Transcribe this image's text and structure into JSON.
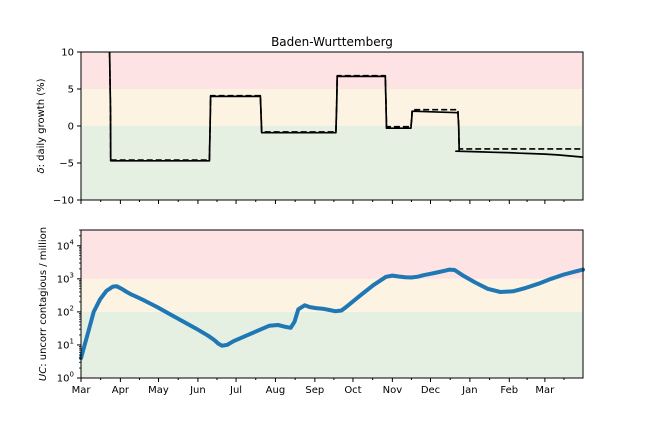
{
  "chart_data": [
    {
      "type": "line",
      "title": "Baden-Wurttemberg",
      "ylabel_italic": "δ",
      "ylabel_rest": ": daily growth (%)",
      "ylim": [
        -10,
        10
      ],
      "yticks": [
        -10,
        -5,
        0,
        5,
        10
      ],
      "xlim_days": [
        0,
        395
      ],
      "band_colors": [
        "#e5f0e2",
        "#fcf3e2",
        "#fde3e3"
      ],
      "bands": [
        [
          -10,
          0
        ],
        [
          0,
          5
        ],
        [
          5,
          10
        ]
      ],
      "series": [
        {
          "style": "solid",
          "x_days": [
            22.5,
            23.2,
            23.4,
            101,
            101.6,
            102,
            141.2,
            141.8,
            142.2,
            200.6,
            201.2,
            201.6,
            239.4,
            240,
            240.4,
            259.6,
            260.2,
            260.6,
            296.6,
            297.2,
            297.6,
            295,
            305,
            315,
            325,
            335,
            345,
            355,
            365,
            375,
            385,
            395
          ],
          "values": [
            10,
            2,
            -4.7,
            -4.7,
            0,
            4.0,
            4.0,
            1,
            -0.9,
            -0.9,
            3,
            6.7,
            6.7,
            3,
            -0.3,
            -0.3,
            1,
            2.0,
            1.8,
            0,
            -3.4,
            -3.4,
            -3.45,
            -3.5,
            -3.55,
            -3.6,
            -3.67,
            -3.73,
            -3.8,
            -3.9,
            -4.05,
            -4.2
          ]
        },
        {
          "style": "dashed",
          "x_days": [
            22.5,
            23.2,
            23.4,
            101,
            101.6,
            102,
            141.2,
            141.8,
            142.2,
            200.6,
            201.2,
            201.6,
            239.4,
            240,
            240.4,
            259.6,
            260.2,
            260.6,
            296.6,
            297.2,
            297.6,
            395
          ],
          "values": [
            10,
            2,
            -4.6,
            -4.6,
            0,
            4.1,
            4.1,
            1,
            -0.8,
            -0.8,
            3,
            6.8,
            6.8,
            3,
            -0.1,
            -0.1,
            1,
            2.2,
            2.2,
            0,
            -3.1,
            -3.1
          ]
        }
      ]
    },
    {
      "type": "line",
      "scale": "log",
      "ylabel_italic": "UC",
      "ylabel_rest": ": uncorr contagious / million",
      "ylim": [
        1,
        30000
      ],
      "ytick_values": [
        1,
        10,
        100,
        1000,
        10000
      ],
      "ytick_exponents": [
        "0",
        "1",
        "2",
        "3",
        "4"
      ],
      "ytick_base": "10",
      "band_colors": [
        "#e5f0e2",
        "#fcf3e2",
        "#fde3e3"
      ],
      "bands": [
        [
          1,
          100
        ],
        [
          100,
          1000
        ],
        [
          1000,
          30000
        ]
      ],
      "xlim_days": [
        0,
        395
      ],
      "x_tick_days": [
        0,
        31,
        61,
        92,
        122,
        153,
        184,
        214,
        245,
        275,
        306,
        337,
        365
      ],
      "x_tick_labels": [
        "Mar",
        "Apr",
        "May",
        "Jun",
        "Jul",
        "Aug",
        "Sep",
        "Oct",
        "Nov",
        "Dec",
        "Jan",
        "Feb",
        "Mar"
      ],
      "x_minor_tick_days": [
        15.5,
        46,
        76.5,
        107,
        137.5,
        168.5,
        199,
        229.5,
        260,
        290.5,
        321.5,
        351,
        380
      ],
      "series": [
        {
          "color": "#1f77b4",
          "x_days": [
            0,
            5,
            10,
            15,
            20,
            25,
            28,
            32,
            36,
            40,
            45,
            50,
            60,
            70,
            80,
            90,
            100,
            105,
            108,
            111,
            115,
            120,
            130,
            140,
            148,
            155,
            160,
            165,
            168,
            171,
            176,
            180,
            185,
            190,
            195,
            200,
            205,
            210,
            220,
            230,
            240,
            245,
            250,
            255,
            260,
            265,
            270,
            275,
            280,
            286,
            290,
            294,
            300,
            310,
            320,
            330,
            340,
            350,
            360,
            370,
            380,
            390,
            395
          ],
          "values": [
            4,
            20,
            100,
            240,
            430,
            580,
            600,
            500,
            400,
            330,
            270,
            220,
            140,
            85,
            52,
            32,
            19,
            14,
            11,
            9.5,
            10,
            13,
            19,
            28,
            38,
            40,
            36,
            33,
            50,
            120,
            158,
            140,
            130,
            125,
            115,
            105,
            110,
            155,
            320,
            640,
            1150,
            1250,
            1180,
            1120,
            1100,
            1160,
            1300,
            1420,
            1550,
            1750,
            1900,
            1850,
            1300,
            780,
            500,
            400,
            420,
            530,
            710,
            1000,
            1350,
            1700,
            1900
          ]
        }
      ]
    }
  ]
}
